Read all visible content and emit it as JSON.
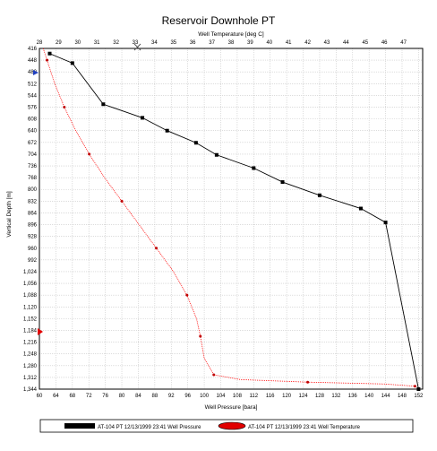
{
  "chart_data": {
    "type": "line",
    "title": "Reservoir Downhole PT",
    "top_axis": {
      "label": "Well Temperature [deg C]",
      "range": [
        28,
        48
      ],
      "ticks": [
        "28",
        "29",
        "30",
        "31",
        "32",
        "33",
        "34",
        "35",
        "36",
        "37",
        "38",
        "39",
        "40",
        "41",
        "42",
        "43",
        "44",
        "45",
        "46",
        "47"
      ]
    },
    "bottom_axis": {
      "label": "Well Pressure [bara]",
      "range": [
        60,
        153
      ],
      "ticks": [
        "60",
        "64",
        "68",
        "72",
        "76",
        "80",
        "84",
        "88",
        "92",
        "96",
        "100",
        "104",
        "108",
        "112",
        "116",
        "120",
        "124",
        "128",
        "132",
        "136",
        "140",
        "144",
        "148",
        "152"
      ]
    },
    "y_axis": {
      "label": "Vertical Depth [m]",
      "range": [
        416,
        1344
      ],
      "inverted": true,
      "ticks": [
        "416",
        "448",
        "480",
        "512",
        "544",
        "576",
        "608",
        "640",
        "672",
        "704",
        "736",
        "768",
        "800",
        "832",
        "864",
        "896",
        "928",
        "960",
        "992",
        "1,024",
        "1,056",
        "1,088",
        "1,120",
        "1,152",
        "1,184",
        "1,216",
        "1,248",
        "1,280",
        "1,312",
        "1,344"
      ]
    },
    "grid": true,
    "legend_position": "bottom",
    "series": [
      {
        "name": "AT-104 PT 12/13/1999 23:41 Well Pressure",
        "axis": "pressure",
        "color": "#000000",
        "points": [
          [
            62.5,
            430
          ],
          [
            68,
            456
          ],
          [
            75.5,
            568
          ],
          [
            85,
            605
          ],
          [
            91,
            640
          ],
          [
            98,
            673
          ],
          [
            103,
            706
          ],
          [
            112,
            742
          ],
          [
            119,
            780
          ],
          [
            128,
            816
          ],
          [
            138,
            852
          ],
          [
            144,
            890
          ],
          [
            152,
            1344
          ]
        ]
      },
      {
        "name": "AT-104 PT 12/13/1999 23:41 Well Temperature",
        "axis": "temperature",
        "color": "#ff0000",
        "points": [
          [
            28.2,
            416
          ],
          [
            28.4,
            448
          ],
          [
            28.8,
            512
          ],
          [
            29.3,
            576
          ],
          [
            29.9,
            640
          ],
          [
            30.6,
            704
          ],
          [
            31.4,
            768
          ],
          [
            32.3,
            832
          ],
          [
            33.2,
            896
          ],
          [
            34.1,
            960
          ],
          [
            35.0,
            1024
          ],
          [
            35.7,
            1088
          ],
          [
            36.2,
            1152
          ],
          [
            36.4,
            1200
          ],
          [
            36.6,
            1260
          ],
          [
            37.1,
            1305
          ],
          [
            38.5,
            1318
          ],
          [
            42,
            1325
          ],
          [
            46,
            1330
          ],
          [
            47.6,
            1336
          ]
        ]
      }
    ]
  },
  "markers": {
    "left_blue": "blue-triangle-icon",
    "left_red": "red-triangle-icon",
    "top_cursor": "pointer-cursor-icon"
  }
}
